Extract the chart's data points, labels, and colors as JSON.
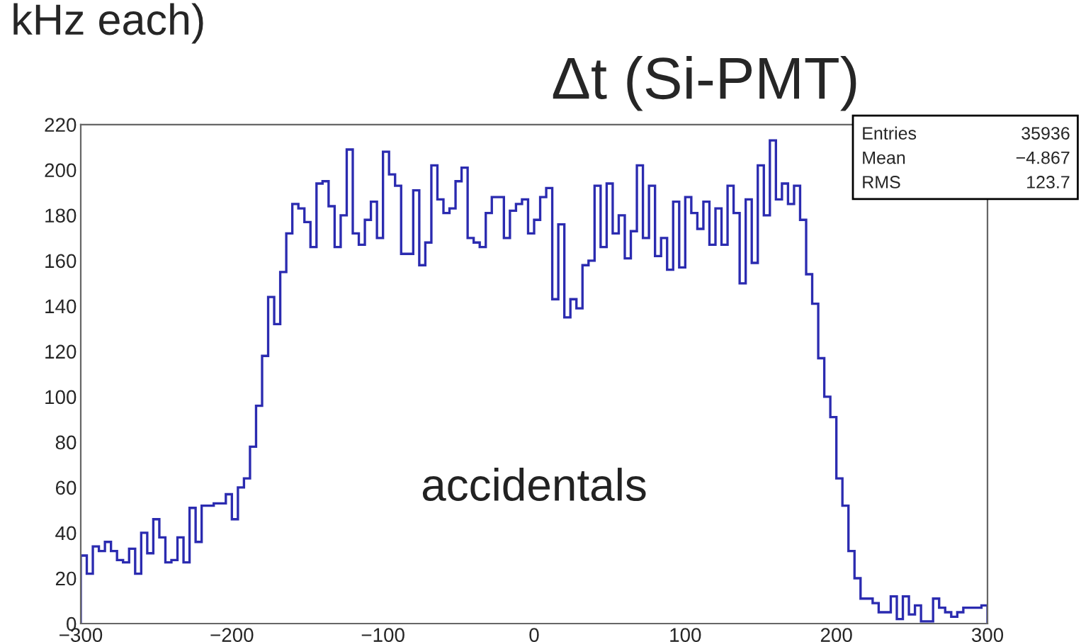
{
  "chart_data": {
    "type": "histogram",
    "title": "Δt (Si-PMT)",
    "bins": [
      -300,
      -296,
      -292,
      -288,
      -284,
      -280,
      -276,
      -272,
      -268,
      -264,
      -260,
      -256,
      -252,
      -248,
      -244,
      -240,
      -236,
      -232,
      -228,
      -224,
      -220,
      -216,
      -212,
      -208,
      -204,
      -200,
      -196,
      -192,
      -188,
      -184,
      -180,
      -176,
      -172,
      -168,
      -164,
      -160,
      -156,
      -152,
      -148,
      -144,
      -140,
      -136,
      -132,
      -128,
      -124,
      -120,
      -116,
      -112,
      -108,
      -104,
      -100,
      -96,
      -92,
      -88,
      -84,
      -80,
      -76,
      -72,
      -68,
      -64,
      -60,
      -56,
      -52,
      -48,
      -44,
      -40,
      -36,
      -32,
      -28,
      -24,
      -20,
      -16,
      -12,
      -8,
      -4,
      0,
      4,
      8,
      12,
      16,
      20,
      24,
      28,
      32,
      36,
      40,
      44,
      48,
      52,
      56,
      60,
      64,
      68,
      72,
      76,
      80,
      84,
      88,
      92,
      96,
      100,
      104,
      108,
      112,
      116,
      120,
      124,
      128,
      132,
      136,
      140,
      144,
      148,
      152,
      156,
      160,
      164,
      168,
      172,
      176,
      180,
      184,
      188,
      192,
      196,
      200,
      204,
      208,
      212,
      216,
      220,
      224,
      228,
      232,
      236,
      240,
      244,
      248,
      252,
      256,
      260,
      264,
      268,
      272,
      276,
      280,
      284,
      288,
      292,
      296,
      300
    ],
    "values": [
      30,
      22,
      34,
      32,
      36,
      32,
      28,
      27,
      33,
      22,
      40,
      31,
      46,
      38,
      27,
      28,
      38,
      27,
      51,
      36,
      52,
      52,
      53,
      53,
      57,
      46,
      60,
      64,
      78,
      96,
      118,
      144,
      132,
      155,
      172,
      185,
      183,
      177,
      166,
      194,
      195,
      184,
      166,
      180,
      209,
      172,
      167,
      178,
      186,
      170,
      208,
      198,
      193,
      163,
      163,
      191,
      158,
      168,
      202,
      187,
      181,
      183,
      195,
      201,
      170,
      168,
      166,
      181,
      188,
      188,
      170,
      182,
      185,
      187,
      172,
      178,
      188,
      192,
      143,
      176,
      135,
      143,
      139,
      158,
      160,
      193,
      166,
      194,
      172,
      180,
      161,
      173,
      202,
      170,
      193,
      162,
      170,
      156,
      186,
      157,
      188,
      181,
      174,
      186,
      167,
      183,
      167,
      193,
      181,
      150,
      187,
      159,
      202,
      180,
      213,
      187,
      194,
      185,
      193,
      178,
      154,
      141,
      117,
      100,
      91,
      64,
      52,
      32,
      20,
      11,
      11,
      9,
      5,
      5,
      12,
      2,
      12,
      4,
      8,
      1,
      1,
      11,
      7,
      5,
      3,
      5,
      7,
      7,
      7,
      8
    ],
    "color": "#2b2bb0",
    "xlim": [
      -300,
      300
    ],
    "xticks": [
      {
        "value": -300,
        "label": "−300"
      },
      {
        "value": -200,
        "label": "−200"
      },
      {
        "value": -100,
        "label": "−100"
      },
      0,
      100,
      200,
      300
    ],
    "ylim": [
      0,
      220
    ],
    "yticks": [
      0,
      20,
      40,
      60,
      80,
      100,
      120,
      140,
      160,
      180,
      200,
      220
    ],
    "grid": false,
    "annotations": [
      "kHz each)",
      "accidentals",
      "Entries",
      "35936",
      "Mean",
      "−4.867",
      "RMS",
      "123.7"
    ]
  }
}
